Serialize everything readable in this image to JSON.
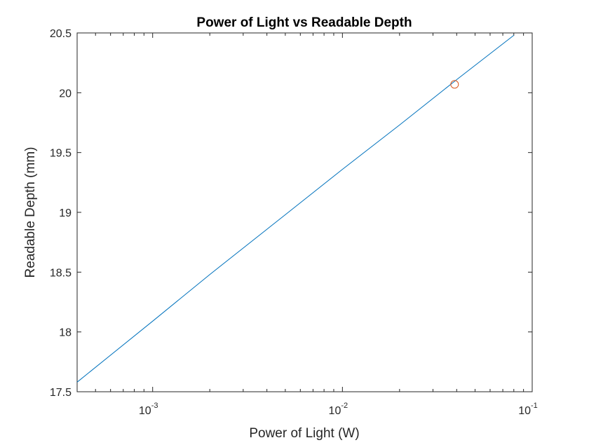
{
  "chart_data": {
    "type": "line",
    "title": "Power of Light vs Readable Depth",
    "xlabel": "Power of Light (W)",
    "ylabel": "Readable Depth (mm)",
    "xscale": "log",
    "xlim": [
      0.0004,
      0.1
    ],
    "ylim": [
      17.5,
      20.5
    ],
    "grid": false,
    "legend": "none",
    "x_ticks": [
      {
        "base": "10",
        "exp": "-3"
      },
      {
        "base": "10",
        "exp": "-2"
      },
      {
        "base": "10",
        "exp": "-1"
      }
    ],
    "y_ticks": [
      "17.5",
      "18",
      "18.5",
      "19",
      "19.5",
      "20",
      "20.5"
    ],
    "series": [
      {
        "color": "#0072bd",
        "x": [
          0.0004,
          0.001,
          0.002,
          0.005,
          0.01,
          0.02,
          0.04,
          0.08
        ],
        "y": [
          17.58,
          18.09,
          18.48,
          18.98,
          19.36,
          19.73,
          20.11,
          20.48
        ]
      }
    ],
    "marker": {
      "x": 0.039,
      "y": 20.07,
      "shape": "circle",
      "color": "#d95319"
    }
  },
  "colors": {
    "line": "#0072bd",
    "marker": "#d95319",
    "axes": "#262626"
  }
}
